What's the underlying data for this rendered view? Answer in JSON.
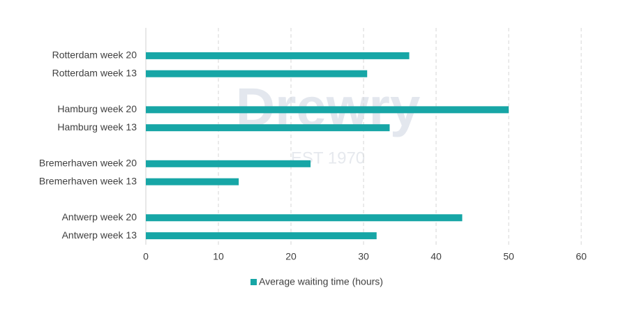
{
  "chart_data": {
    "type": "hbar",
    "watermark": "Drewry",
    "watermark_sub": "EST 1970",
    "categories": [
      "Rotterdam week 20",
      "Rotterdam week 13",
      null,
      "Hamburg week 20",
      "Hamburg week 13",
      null,
      "Bremerhaven week 20",
      "Bremerhaven week 13",
      null,
      "Antwerp week 20",
      "Antwerp week 13"
    ],
    "series": [
      {
        "name": "Average waiting time (hours)",
        "color": "#17a6a6",
        "values": [
          36.3,
          30.5,
          null,
          50.0,
          33.6,
          null,
          22.7,
          12.8,
          null,
          43.6,
          31.8
        ]
      }
    ],
    "xlim": [
      0,
      60
    ],
    "xticks": [
      0,
      10,
      20,
      30,
      40,
      50,
      60
    ],
    "grid": true,
    "legend": "bottom"
  }
}
